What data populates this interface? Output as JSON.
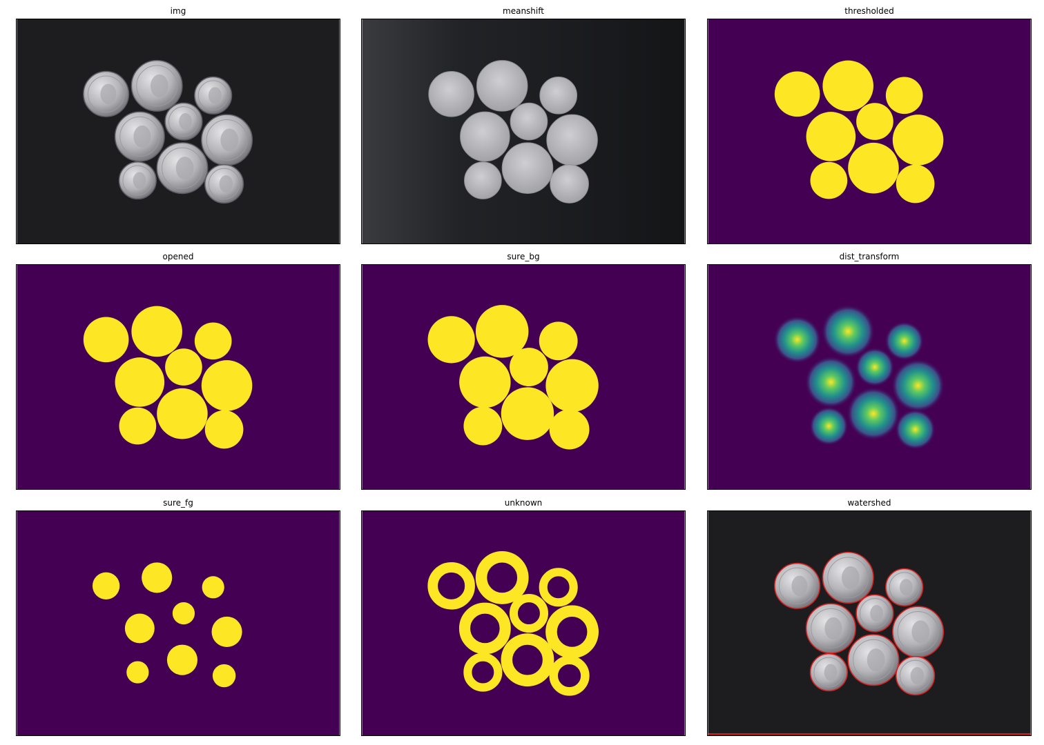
{
  "panels": [
    {
      "title": "img"
    },
    {
      "title": "meanshift"
    },
    {
      "title": "thresholded"
    },
    {
      "title": "opened"
    },
    {
      "title": "sure_bg"
    },
    {
      "title": "dist_transform"
    },
    {
      "title": "sure_fg"
    },
    {
      "title": "unknown"
    },
    {
      "title": "watershed"
    }
  ],
  "colors": {
    "background_dark": "#440154",
    "foreground_yellow": "#fde725",
    "boundary_red": "#d62020"
  }
}
